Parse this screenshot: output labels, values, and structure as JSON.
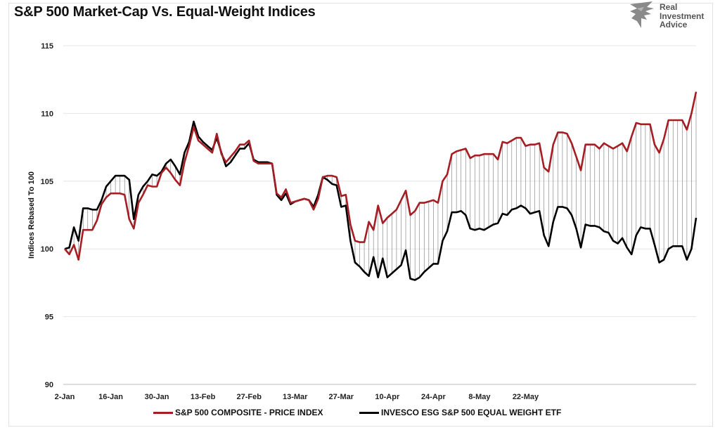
{
  "title": "S&P 500 Market-Cap Vs. Equal-Weight Indices",
  "logo": {
    "line1": "Real",
    "line2": "Investment",
    "line3": "Advice"
  },
  "chart_data": {
    "type": "line",
    "ylabel": "Indices Rebased To 100",
    "ylim": [
      90,
      115
    ],
    "yticks": [
      90,
      95,
      100,
      105,
      110,
      115
    ],
    "xtick_labels": [
      "2-Jan",
      "16-Jan",
      "30-Jan",
      "13-Feb",
      "27-Feb",
      "13-Mar",
      "27-Mar",
      "10-Apr",
      "24-Apr",
      "8-May",
      "22-May"
    ],
    "xtick_index": [
      0,
      10,
      20,
      30,
      40,
      50,
      60,
      70,
      80,
      90,
      100
    ],
    "grid": "horizontal",
    "legend_position": "bottom",
    "colors": {
      "sp500": "#a61d24",
      "equal": "#000000",
      "spread": "#777777",
      "grid": "#e6e6e6"
    },
    "series": [
      {
        "name": "S&P 500 COMPOSITE - PRICE INDEX",
        "values": [
          100.0,
          99.6,
          100.3,
          99.2,
          101.4,
          101.4,
          101.4,
          102.1,
          103.3,
          103.8,
          104.1,
          104.1,
          104.1,
          104.0,
          102.2,
          101.5,
          103.4,
          104.0,
          104.7,
          104.6,
          104.6,
          105.6,
          106.0,
          105.6,
          105.1,
          104.7,
          106.4,
          107.6,
          109.0,
          108.0,
          107.7,
          107.4,
          107.1,
          108.5,
          107.0,
          106.4,
          106.8,
          107.2,
          107.7,
          107.7,
          108.0,
          106.5,
          106.3,
          106.3,
          106.3,
          106.3,
          104.1,
          103.8,
          104.4,
          103.4,
          103.5,
          103.6,
          103.7,
          103.6,
          102.9,
          103.7,
          105.3,
          105.4,
          105.4,
          105.3,
          103.9,
          104.0,
          101.8,
          100.6,
          100.5,
          100.5,
          102.0,
          101.4,
          103.2,
          101.9,
          102.3,
          102.6,
          102.9,
          103.6,
          104.3,
          102.5,
          102.8,
          103.4,
          103.4,
          103.5,
          103.6,
          103.4,
          105.0,
          105.5,
          107.0,
          107.2,
          107.3,
          107.4,
          106.7,
          106.9,
          106.9,
          107.0,
          107.0,
          107.0,
          106.6,
          107.9,
          107.8,
          108.0,
          108.2,
          108.2,
          107.6,
          107.7,
          107.7,
          107.8,
          106.0,
          105.7,
          107.7,
          108.6,
          108.6,
          108.5,
          107.8,
          106.8,
          105.8,
          107.7,
          107.7,
          107.7,
          107.4,
          107.8,
          107.6,
          107.4,
          107.6,
          107.8,
          107.2,
          108.3,
          109.3,
          109.2,
          109.2,
          109.2,
          107.7,
          107.1,
          108.1,
          109.5,
          109.5,
          109.5,
          109.5,
          108.8,
          110.0,
          111.6
        ]
      },
      {
        "name": "INVESCO ESG S&P 500 EQUAL WEIGHT ETF",
        "values": [
          100.0,
          100.1,
          101.6,
          100.6,
          103.0,
          103.0,
          102.9,
          102.9,
          103.6,
          104.6,
          105.0,
          105.4,
          105.4,
          105.4,
          105.1,
          102.2,
          104.0,
          104.6,
          105.0,
          105.5,
          105.4,
          105.7,
          106.3,
          106.6,
          106.1,
          105.5,
          107.1,
          107.9,
          109.4,
          108.3,
          107.9,
          107.6,
          107.3,
          108.2,
          107.1,
          106.1,
          106.4,
          106.9,
          107.4,
          107.4,
          107.8,
          106.6,
          106.4,
          106.4,
          106.4,
          106.3,
          104.0,
          103.6,
          104.1,
          103.3,
          103.5,
          103.6,
          103.7,
          103.6,
          103.1,
          104.0,
          105.3,
          105.1,
          104.8,
          104.7,
          103.1,
          103.2,
          100.6,
          99.0,
          98.7,
          98.3,
          98.0,
          99.4,
          97.9,
          99.3,
          97.9,
          98.2,
          98.5,
          98.8,
          99.9,
          97.8,
          97.7,
          97.9,
          98.3,
          98.6,
          98.9,
          98.9,
          100.6,
          101.3,
          102.7,
          102.7,
          102.8,
          102.5,
          101.5,
          101.4,
          101.5,
          101.4,
          101.6,
          101.8,
          101.9,
          102.6,
          102.5,
          102.9,
          103.0,
          103.2,
          103.0,
          102.6,
          102.7,
          102.8,
          101.0,
          100.2,
          102.0,
          103.1,
          103.1,
          103.0,
          102.5,
          101.5,
          100.1,
          101.8,
          101.7,
          101.7,
          101.6,
          101.3,
          101.2,
          100.6,
          100.4,
          100.8,
          100.1,
          99.6,
          101.0,
          101.6,
          101.5,
          101.5,
          100.3,
          99.0,
          99.2,
          100.0,
          100.2,
          100.2,
          100.2,
          99.2,
          100.0,
          102.3
        ]
      }
    ]
  }
}
